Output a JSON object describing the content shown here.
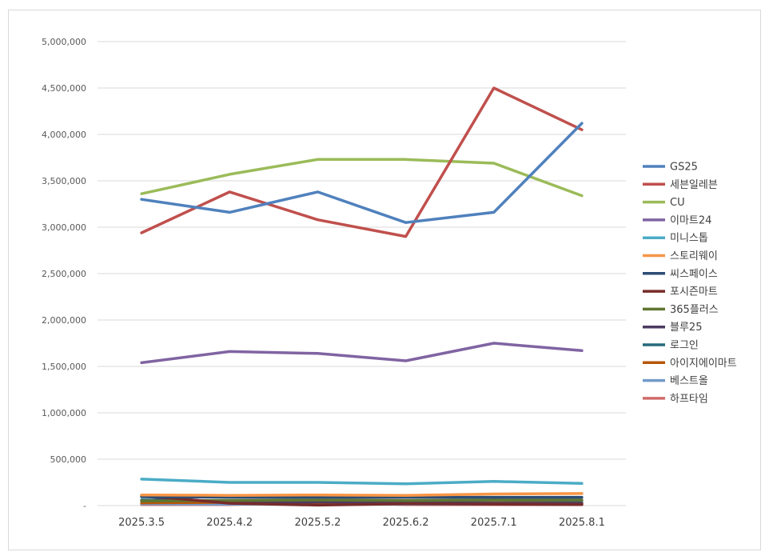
{
  "chart_data": {
    "type": "line",
    "title": "",
    "xlabel": "",
    "ylabel": "",
    "ylim": [
      0,
      5000000
    ],
    "yticks": [
      0,
      500000,
      1000000,
      1500000,
      2000000,
      2500000,
      3000000,
      3500000,
      4000000,
      4500000,
      5000000
    ],
    "ytick_labels": [
      "-",
      "500,000",
      "1,000,000",
      "1,500,000",
      "2,000,000",
      "2,500,000",
      "3,000,000",
      "3,500,000",
      "4,000,000",
      "4,500,000",
      "5,000,000"
    ],
    "categories": [
      "2025.3.5",
      "2025.4.2",
      "2025.5.2",
      "2025.6.2",
      "2025.7.1",
      "2025.8.1"
    ],
    "grid": true,
    "legend_position": "right",
    "series": [
      {
        "name": "GS25",
        "color": "#4f81bd",
        "values": [
          3300000,
          3160000,
          3380000,
          3050000,
          3160000,
          4120000
        ]
      },
      {
        "name": "세븐일레븐",
        "color": "#c0504d",
        "values": [
          2940000,
          3380000,
          3080000,
          2900000,
          4500000,
          4050000
        ]
      },
      {
        "name": "CU",
        "color": "#9bbb59",
        "values": [
          3360000,
          3570000,
          3730000,
          3730000,
          3690000,
          3340000
        ]
      },
      {
        "name": "이마트24",
        "color": "#8064a2",
        "values": [
          1540000,
          1660000,
          1640000,
          1560000,
          1750000,
          1670000
        ]
      },
      {
        "name": "미니스톱",
        "color": "#4bacc6",
        "values": [
          285000,
          250000,
          250000,
          235000,
          260000,
          240000
        ]
      },
      {
        "name": "스토리웨이",
        "color": "#f79646",
        "values": [
          115000,
          110000,
          115000,
          110000,
          125000,
          130000
        ]
      },
      {
        "name": "씨스페이스",
        "color": "#2c4d75",
        "values": [
          95000,
          90000,
          90000,
          90000,
          90000,
          90000
        ]
      },
      {
        "name": "포시즌마트",
        "color": "#772c2a",
        "values": [
          110000,
          25000,
          5000,
          20000,
          15000,
          10000
        ]
      },
      {
        "name": "365플러스",
        "color": "#5f7530",
        "values": [
          50000,
          55000,
          60000,
          55000,
          60000,
          60000
        ]
      },
      {
        "name": "블루25",
        "color": "#4d3b62",
        "values": [
          100000,
          30000,
          40000,
          35000,
          25000,
          25000
        ]
      },
      {
        "name": "로그인",
        "color": "#276a7c",
        "values": [
          60000,
          50000,
          55000,
          50000,
          60000,
          55000
        ]
      },
      {
        "name": "아이지에이마트",
        "color": "#b65708",
        "values": [
          30000,
          35000,
          30000,
          25000,
          30000,
          30000
        ]
      },
      {
        "name": "베스트올",
        "color": "#729aca",
        "values": [
          20000,
          15000,
          20000,
          15000,
          15000,
          20000
        ]
      },
      {
        "name": "하프타임",
        "color": "#d06c6a",
        "values": [
          10000,
          10000,
          40000,
          10000,
          10000,
          10000
        ]
      }
    ]
  }
}
